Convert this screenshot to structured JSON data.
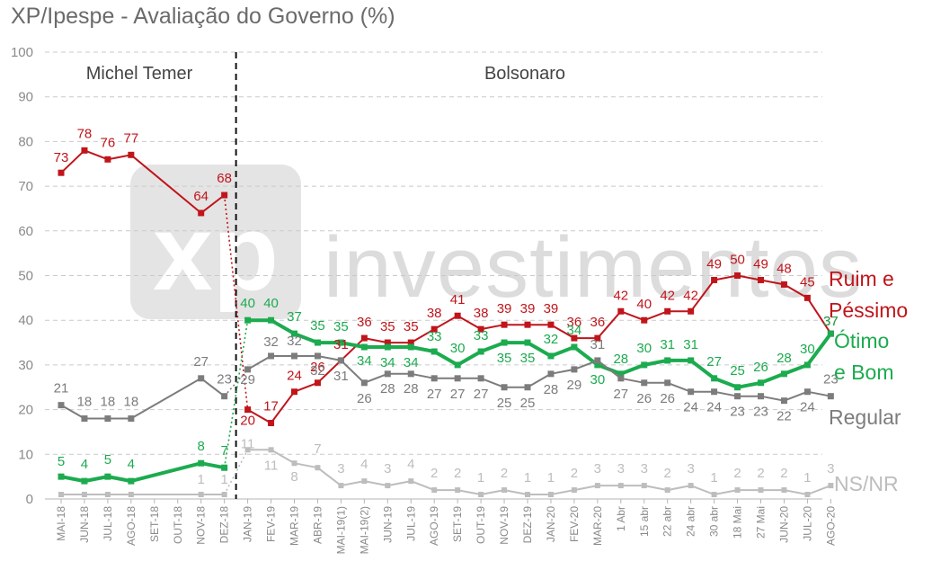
{
  "title": "XP/Ipespe - Avaliação do Governo (%)",
  "watermark": {
    "brand": "xp",
    "text": "investimentos"
  },
  "chart_data": {
    "type": "line",
    "ylim": [
      0,
      100
    ],
    "yticks": [
      "0",
      "10",
      "20",
      "30",
      "40",
      "50",
      "60",
      "70",
      "80",
      "90",
      "100"
    ],
    "grid": true,
    "categories": [
      "MAI-18",
      "JUN-18",
      "JUL-18",
      "AGO-18",
      "SET-18",
      "OUT-18",
      "NOV-18",
      "DEZ-18",
      "JAN-19",
      "FEV-19",
      "MAR-19",
      "ABR-19",
      "MAI-19(1)",
      "MAI-19(2)",
      "JUN-19",
      "JUL-19",
      "AGO-19",
      "SET-19",
      "OUT-19",
      "NOV-19",
      "DEZ-19",
      "JAN-20",
      "FEV-20",
      "MAR-20",
      "1 Abr",
      "15 abr",
      "22 abr",
      "24 abr",
      "30 abr",
      "18 Mai",
      "27 Mai",
      "JUN-20",
      "JUL-20",
      "AGO-20"
    ],
    "periods": [
      {
        "label": "Michel Temer",
        "from": 0,
        "to": 7
      },
      {
        "label": "Bolsonaro",
        "from": 8,
        "to": 33
      }
    ],
    "divider_after_index": 7,
    "series": [
      {
        "name": "Ruim e Péssimo",
        "name_lines": [
          "Ruim e",
          "Péssimo"
        ],
        "color": "#c0151b",
        "values": [
          73,
          78,
          76,
          77,
          null,
          null,
          64,
          68,
          20,
          17,
          24,
          26,
          31,
          36,
          35,
          35,
          38,
          41,
          38,
          39,
          39,
          39,
          36,
          36,
          42,
          40,
          42,
          42,
          49,
          50,
          49,
          48,
          45,
          37
        ],
        "labels": [
          "73",
          "78",
          "76",
          "77",
          "",
          "",
          "64",
          "68",
          "20",
          "17",
          "24",
          "26",
          "31",
          "36",
          "35",
          "35",
          "38",
          "41",
          "38",
          "39",
          "39",
          "39",
          "36",
          "36",
          "42",
          "40",
          "42",
          "42",
          "49",
          "50",
          "49",
          "48",
          "45",
          "37"
        ]
      },
      {
        "name": "Ótimo e Bom",
        "name_lines": [
          "Ótimo",
          "e Bom"
        ],
        "color": "#1cab4f",
        "values": [
          5,
          4,
          5,
          4,
          null,
          null,
          8,
          7,
          40,
          40,
          37,
          35,
          35,
          34,
          34,
          34,
          33,
          30,
          33,
          35,
          35,
          32,
          34,
          30,
          28,
          30,
          31,
          31,
          27,
          25,
          26,
          28,
          30,
          37
        ],
        "labels": [
          "5",
          "4",
          "5",
          "4",
          "",
          "",
          "8",
          "7",
          "40",
          "40",
          "37",
          "35",
          "35",
          "34",
          "34",
          "34",
          "33",
          "30",
          "33",
          "35",
          "35",
          "32",
          "34",
          "30",
          "28",
          "30",
          "31",
          "31",
          "27",
          "25",
          "26",
          "28",
          "30",
          "37"
        ]
      },
      {
        "name": "Regular",
        "name_lines": [
          "Regular"
        ],
        "color": "#7c7c7c",
        "values": [
          21,
          18,
          18,
          18,
          null,
          null,
          27,
          23,
          29,
          32,
          32,
          32,
          31,
          26,
          28,
          28,
          27,
          27,
          27,
          25,
          25,
          28,
          29,
          31,
          27,
          26,
          26,
          24,
          24,
          23,
          23,
          22,
          24,
          23
        ],
        "labels": [
          "21",
          "18",
          "18",
          "18",
          "",
          "",
          "27",
          "23",
          "29",
          "32",
          "32",
          "32",
          "31",
          "26",
          "28",
          "28",
          "27",
          "27",
          "27",
          "25",
          "25",
          "28",
          "29",
          "31",
          "27",
          "26",
          "26",
          "24",
          "24",
          "23",
          "23",
          "22",
          "24",
          "23"
        ]
      },
      {
        "name": "NS/NR",
        "name_lines": [
          "NS/NR"
        ],
        "color": "#bdbdbd",
        "values": [
          1,
          1,
          1,
          1,
          null,
          null,
          1,
          1,
          11,
          11,
          8,
          7,
          3,
          4,
          3,
          4,
          2,
          2,
          1,
          2,
          1,
          1,
          2,
          3,
          3,
          3,
          2,
          3,
          1,
          2,
          2,
          2,
          1,
          3
        ],
        "labels": [
          "",
          "",
          "",
          "",
          "",
          "",
          "1",
          "1",
          "11",
          "11",
          "8",
          "7",
          "3",
          "4",
          "3",
          "4",
          "2",
          "2",
          "1",
          "2",
          "1",
          "1",
          "2",
          "3",
          "3",
          "3",
          "2",
          "3",
          "1",
          "2",
          "2",
          "2",
          "1",
          "3"
        ]
      }
    ]
  }
}
